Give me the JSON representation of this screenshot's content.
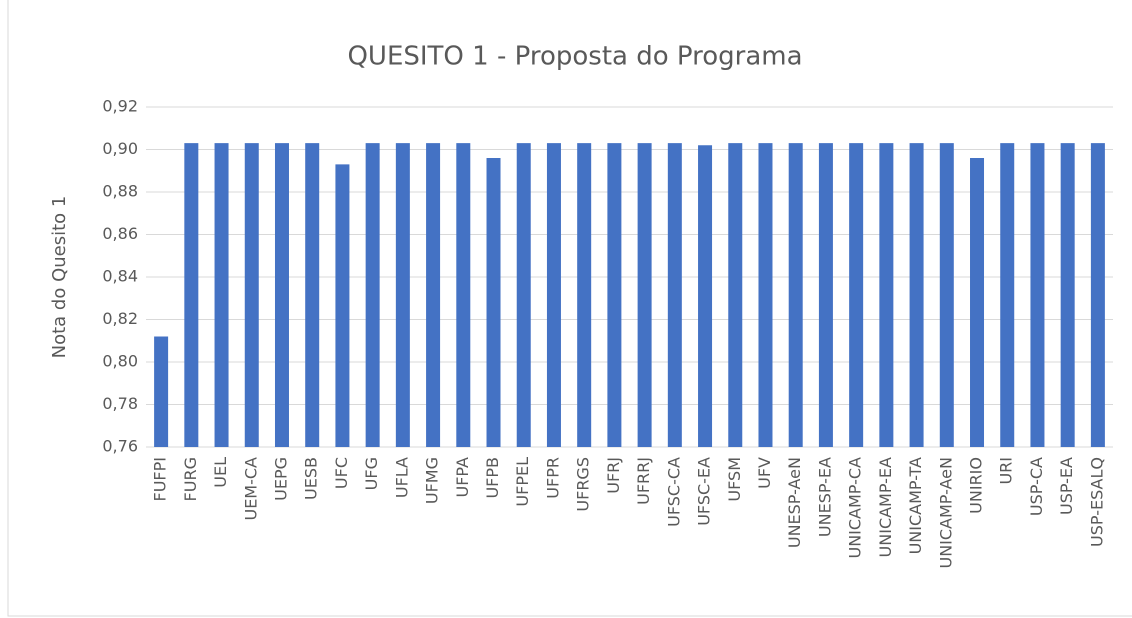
{
  "chart_data": {
    "type": "bar",
    "title": "QUESITO 1 - Proposta do Programa",
    "y_label": "Nota do Quesito 1",
    "categories": [
      "FUFPI",
      "FURG",
      "UEL",
      "UEM-CA",
      "UEPG",
      "UESB",
      "UFC",
      "UFG",
      "UFLA",
      "UFMG",
      "UFPA",
      "UFPB",
      "UFPEL",
      "UFPR",
      "UFRGS",
      "UFRJ",
      "UFRRJ",
      "UFSC-CA",
      "UFSC-EA",
      "UFSM",
      "UFV",
      "UNESP-AeN",
      "UNESP-EA",
      "UNICAMP-CA",
      "UNICAMP-EA",
      "UNICAMP-TA",
      "UNICAMP-AeN",
      "UNIRIO",
      "URI",
      "USP-CA",
      "USP-EA",
      "USP-ESALQ"
    ],
    "values": [
      0.812,
      0.903,
      0.903,
      0.903,
      0.903,
      0.903,
      0.893,
      0.903,
      0.903,
      0.903,
      0.903,
      0.896,
      0.903,
      0.903,
      0.903,
      0.903,
      0.903,
      0.903,
      0.902,
      0.903,
      0.903,
      0.903,
      0.903,
      0.903,
      0.903,
      0.903,
      0.903,
      0.896,
      0.903,
      0.903,
      0.903,
      0.903
    ],
    "color": "#4472c4",
    "ylim": [
      0.76,
      0.92
    ],
    "yticks": [
      {
        "value": 0.76,
        "label": "0,76"
      },
      {
        "value": 0.78,
        "label": "0,78"
      },
      {
        "value": 0.8,
        "label": "0,80"
      },
      {
        "value": 0.82,
        "label": "0,82"
      },
      {
        "value": 0.84,
        "label": "0,84"
      },
      {
        "value": 0.86,
        "label": "0,86"
      },
      {
        "value": 0.88,
        "label": "0,88"
      },
      {
        "value": 0.9,
        "label": "0,90"
      },
      {
        "value": 0.92,
        "label": "0,92"
      }
    ],
    "grid": true
  }
}
